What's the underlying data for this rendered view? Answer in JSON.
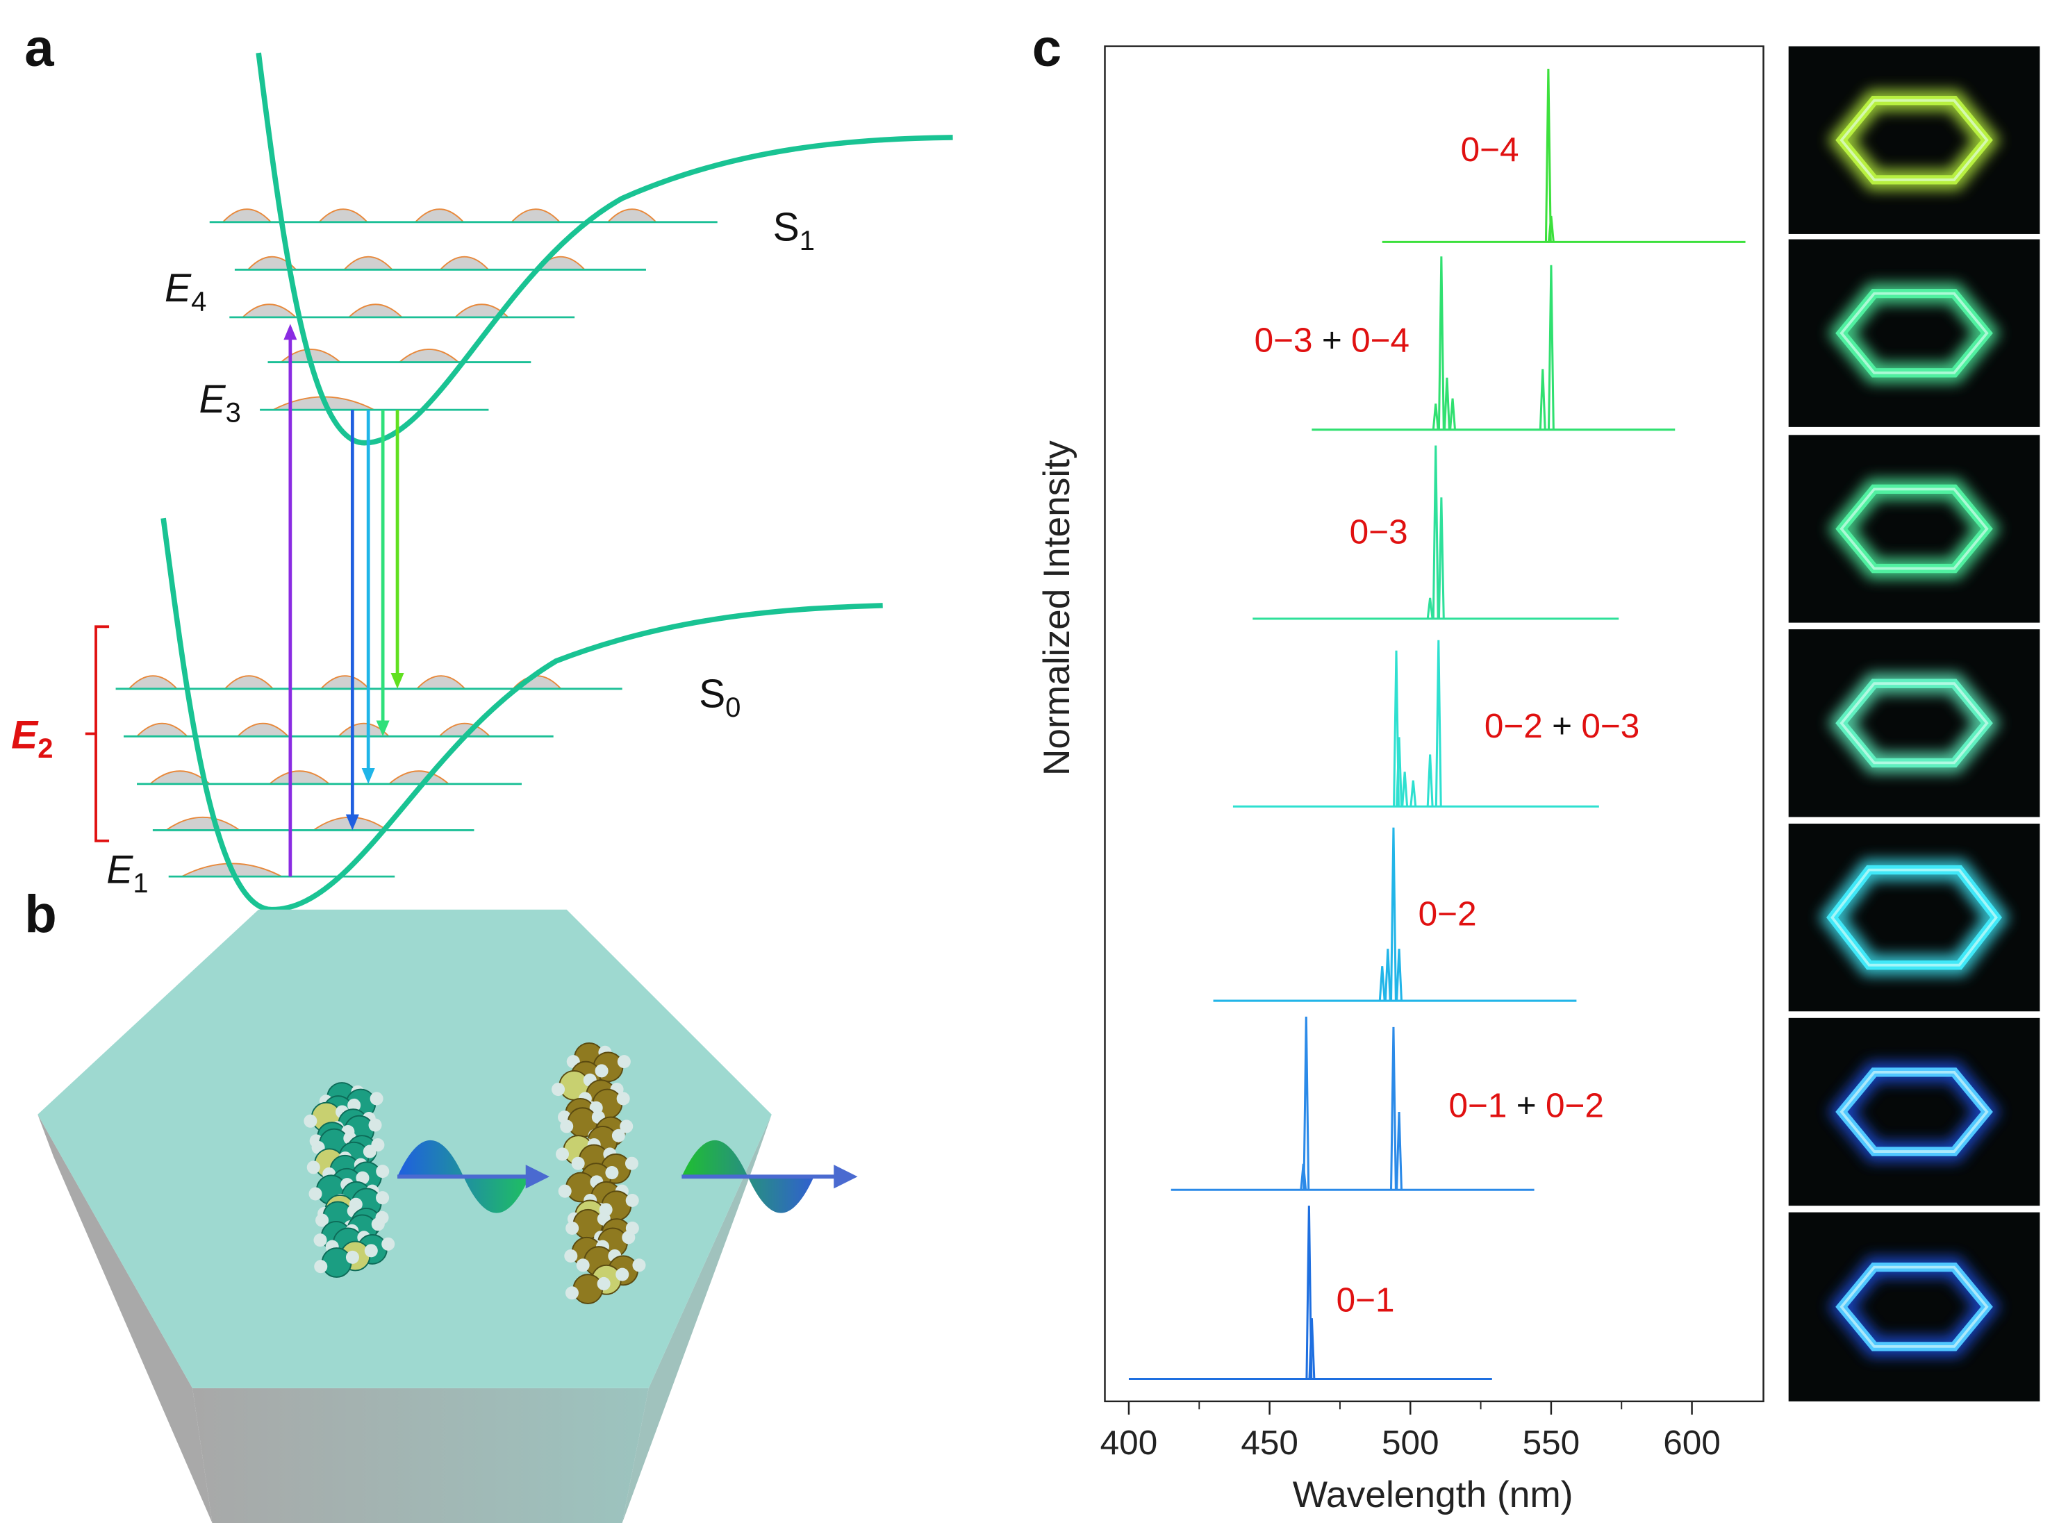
{
  "panel_labels": [
    "a",
    "b",
    "c"
  ],
  "energy_diagram": {
    "states": [
      {
        "main": "S",
        "sub": "1"
      },
      {
        "main": "S",
        "sub": "0"
      }
    ],
    "levels": [
      {
        "main": "E",
        "sub": "4"
      },
      {
        "main": "E",
        "sub": "3"
      },
      {
        "main": "E",
        "sub": "2"
      },
      {
        "main": "E",
        "sub": "1"
      }
    ]
  },
  "chart_data": {
    "type": "spectra",
    "x_label": "Wavelength (nm)",
    "y_label": "Normalized Intensity",
    "xlim": [
      391.5,
      625.4
    ],
    "xticks": [
      400,
      450,
      500,
      550,
      600
    ],
    "series": [
      {
        "name": [
          "0−1"
        ],
        "color": "#1e6fe0",
        "range": [
          400,
          529
        ],
        "peaks": [
          [
            464,
            1.0
          ],
          [
            465,
            0.35
          ]
        ]
      },
      {
        "name": [
          "0−1",
          "+",
          "0−2"
        ],
        "color": "#2b8ae8",
        "range": [
          415,
          544
        ],
        "peaks": [
          [
            462,
            0.15
          ],
          [
            463,
            1.0
          ],
          [
            494,
            0.94
          ],
          [
            496,
            0.45
          ]
        ]
      },
      {
        "name": [
          "0−2"
        ],
        "color": "#22b5e8",
        "range": [
          430,
          559
        ],
        "peaks": [
          [
            490,
            0.2
          ],
          [
            492,
            0.3
          ],
          [
            494,
            1.0
          ],
          [
            496,
            0.3
          ]
        ]
      },
      {
        "name": [
          "0−2",
          "+",
          "0−3"
        ],
        "color": "#2ee0d0",
        "range": [
          437,
          567
        ],
        "peaks": [
          [
            495,
            0.9
          ],
          [
            496,
            0.4
          ],
          [
            498,
            0.2
          ],
          [
            501,
            0.15
          ],
          [
            507,
            0.3
          ],
          [
            510,
            0.96
          ]
        ]
      },
      {
        "name": [
          "0−3"
        ],
        "color": "#2ee09a",
        "range": [
          444,
          574
        ],
        "peaks": [
          [
            507,
            0.12
          ],
          [
            509,
            1.0
          ],
          [
            511,
            0.7
          ]
        ]
      },
      {
        "name": [
          "0−3",
          "+",
          "0−4"
        ],
        "color": "#30e070",
        "range": [
          465,
          594
        ],
        "peaks": [
          [
            509,
            0.15
          ],
          [
            511,
            1.0
          ],
          [
            513,
            0.3
          ],
          [
            515,
            0.18
          ],
          [
            547,
            0.35
          ],
          [
            550,
            0.95
          ]
        ]
      },
      {
        "name": [
          "0−4"
        ],
        "color": "#3ce03c",
        "range": [
          490,
          619
        ],
        "peaks": [
          [
            549,
            1.0
          ],
          [
            550,
            0.15
          ]
        ]
      }
    ]
  }
}
